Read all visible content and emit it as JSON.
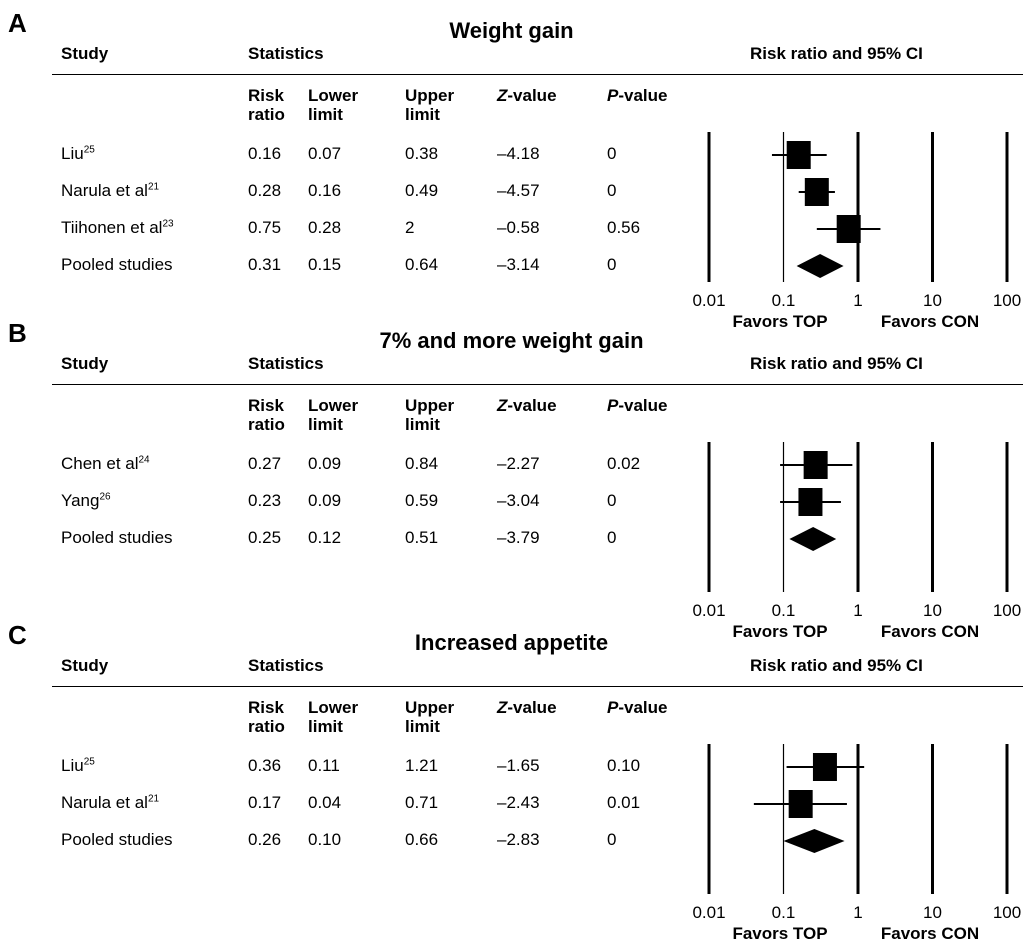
{
  "chart_data": [
    {
      "type": "forest",
      "panel_letter": "A",
      "title": "Weight gain",
      "headers": {
        "study": "Study",
        "statistics": "Statistics",
        "ci": "Risk ratio and 95% CI"
      },
      "columns": [
        "Risk ratio",
        "Lower limit",
        "Upper limit",
        "Z-value",
        "P-value"
      ],
      "column_html": [
        "Risk<br>ratio",
        "Lower<br>limit",
        "Upper<br>limit",
        "<i>Z</i>-value",
        "<i>P</i>-value"
      ],
      "rows": [
        {
          "study": "Liu",
          "ref": "25",
          "rr": 0.16,
          "lower": 0.07,
          "upper": 0.38,
          "stats": [
            "0.16",
            "0.07",
            "0.38",
            "–4.18",
            "0"
          ],
          "pooled": false
        },
        {
          "study": "Narula et al",
          "ref": "21",
          "rr": 0.28,
          "lower": 0.16,
          "upper": 0.49,
          "stats": [
            "0.28",
            "0.16",
            "0.49",
            "–4.57",
            "0"
          ],
          "pooled": false
        },
        {
          "study": "Tiihonen et al",
          "ref": "23",
          "rr": 0.75,
          "lower": 0.28,
          "upper": 2,
          "stats": [
            "0.75",
            "0.28",
            "2",
            "–0.58",
            "0.56"
          ],
          "pooled": false
        },
        {
          "study": "Pooled studies",
          "ref": "",
          "rr": 0.31,
          "lower": 0.15,
          "upper": 0.64,
          "stats": [
            "0.31",
            "0.15",
            "0.64",
            "–3.14",
            "0"
          ],
          "pooled": true
        }
      ],
      "x_scale": "log",
      "x_ticks": [
        0.01,
        0.1,
        1,
        10,
        100
      ],
      "x_tick_labels": [
        "0.01",
        "0.1",
        "1",
        "10",
        "100"
      ],
      "favors_left": "Favors TOP",
      "favors_right": "Favors CON"
    },
    {
      "type": "forest",
      "panel_letter": "B",
      "title": "7% and more weight gain",
      "headers": {
        "study": "Study",
        "statistics": "Statistics",
        "ci": "Risk ratio and 95% CI"
      },
      "columns": [
        "Risk ratio",
        "Lower limit",
        "Upper limit",
        "Z-value",
        "P-value"
      ],
      "column_html": [
        "Risk<br>ratio",
        "Lower<br>limit",
        "Upper<br>limit",
        "<i>Z</i>-value",
        "<i>P</i>-value"
      ],
      "rows": [
        {
          "study": "Chen et al",
          "ref": "24",
          "rr": 0.27,
          "lower": 0.09,
          "upper": 0.84,
          "stats": [
            "0.27",
            "0.09",
            "0.84",
            "–2.27",
            "0.02"
          ],
          "pooled": false
        },
        {
          "study": "Yang",
          "ref": "26",
          "rr": 0.23,
          "lower": 0.09,
          "upper": 0.59,
          "stats": [
            "0.23",
            "0.09",
            "0.59",
            "–3.04",
            "0"
          ],
          "pooled": false
        },
        {
          "study": "Pooled studies",
          "ref": "",
          "rr": 0.25,
          "lower": 0.12,
          "upper": 0.51,
          "stats": [
            "0.25",
            "0.12",
            "0.51",
            "–3.79",
            "0"
          ],
          "pooled": true
        }
      ],
      "x_scale": "log",
      "x_ticks": [
        0.01,
        0.1,
        1,
        10,
        100
      ],
      "x_tick_labels": [
        "0.01",
        "0.1",
        "1",
        "10",
        "100"
      ],
      "favors_left": "Favors TOP",
      "favors_right": "Favors CON"
    },
    {
      "type": "forest",
      "panel_letter": "C",
      "title": "Increased appetite",
      "headers": {
        "study": "Study",
        "statistics": "Statistics",
        "ci": "Risk ratio and 95% CI"
      },
      "columns": [
        "Risk ratio",
        "Lower limit",
        "Upper limit",
        "Z-value",
        "P-value"
      ],
      "column_html": [
        "Risk<br>ratio",
        "Lower<br>limit",
        "Upper<br>limit",
        "<i>Z</i>-value",
        "<i>P</i>-value"
      ],
      "rows": [
        {
          "study": "Liu",
          "ref": "25",
          "rr": 0.36,
          "lower": 0.11,
          "upper": 1.21,
          "stats": [
            "0.36",
            "0.11",
            "1.21",
            "–1.65",
            "0.10"
          ],
          "pooled": false
        },
        {
          "study": "Narula et al",
          "ref": "21",
          "rr": 0.17,
          "lower": 0.04,
          "upper": 0.71,
          "stats": [
            "0.17",
            "0.04",
            "0.71",
            "–2.43",
            "0.01"
          ],
          "pooled": false
        },
        {
          "study": "Pooled studies",
          "ref": "",
          "rr": 0.26,
          "lower": 0.1,
          "upper": 0.66,
          "stats": [
            "0.26",
            "0.10",
            "0.66",
            "–2.83",
            "0"
          ],
          "pooled": true
        }
      ],
      "x_scale": "log",
      "x_ticks": [
        0.01,
        0.1,
        1,
        10,
        100
      ],
      "x_tick_labels": [
        "0.01",
        "0.1",
        "1",
        "10",
        "100"
      ],
      "favors_left": "Favors TOP",
      "favors_right": "Favors CON"
    }
  ]
}
